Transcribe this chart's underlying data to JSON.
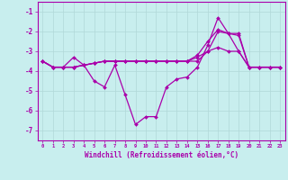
{
  "xlabel": "Windchill (Refroidissement éolien,°C)",
  "background_color": "#c8eeee",
  "grid_color": "#b0d8d8",
  "line_color": "#aa00aa",
  "xlim": [
    -0.5,
    23.5
  ],
  "ylim": [
    -7.5,
    -0.5
  ],
  "yticks": [
    -7,
    -6,
    -5,
    -4,
    -3,
    -2,
    -1
  ],
  "xticks": [
    0,
    1,
    2,
    3,
    4,
    5,
    6,
    7,
    8,
    9,
    10,
    11,
    12,
    13,
    14,
    15,
    16,
    17,
    18,
    19,
    20,
    21,
    22,
    23
  ],
  "series": [
    [
      [
        0,
        -3.5
      ],
      [
        1,
        -3.8
      ],
      [
        2,
        -3.8
      ],
      [
        3,
        -3.3
      ],
      [
        4,
        -3.7
      ],
      [
        5,
        -4.5
      ],
      [
        6,
        -4.8
      ],
      [
        7,
        -3.7
      ],
      [
        8,
        -5.2
      ],
      [
        9,
        -6.7
      ],
      [
        10,
        -6.3
      ],
      [
        11,
        -6.3
      ],
      [
        12,
        -4.8
      ],
      [
        13,
        -4.4
      ],
      [
        14,
        -4.3
      ],
      [
        15,
        -3.8
      ],
      [
        16,
        -2.7
      ],
      [
        17,
        -1.3
      ],
      [
        18,
        -2.1
      ],
      [
        19,
        -2.1
      ],
      [
        20,
        -3.8
      ],
      [
        21,
        -3.8
      ],
      [
        22,
        -3.8
      ],
      [
        23,
        -3.8
      ]
    ],
    [
      [
        0,
        -3.5
      ],
      [
        1,
        -3.8
      ],
      [
        2,
        -3.8
      ],
      [
        3,
        -3.8
      ],
      [
        4,
        -3.7
      ],
      [
        5,
        -3.6
      ],
      [
        6,
        -3.5
      ],
      [
        7,
        -3.5
      ],
      [
        8,
        -3.5
      ],
      [
        9,
        -3.5
      ],
      [
        10,
        -3.5
      ],
      [
        11,
        -3.5
      ],
      [
        12,
        -3.5
      ],
      [
        13,
        -3.5
      ],
      [
        14,
        -3.5
      ],
      [
        15,
        -3.3
      ],
      [
        16,
        -3.0
      ],
      [
        17,
        -2.8
      ],
      [
        18,
        -3.0
      ],
      [
        19,
        -3.0
      ],
      [
        20,
        -3.8
      ],
      [
        21,
        -3.8
      ],
      [
        22,
        -3.8
      ],
      [
        23,
        -3.8
      ]
    ],
    [
      [
        0,
        -3.5
      ],
      [
        1,
        -3.8
      ],
      [
        2,
        -3.8
      ],
      [
        3,
        -3.8
      ],
      [
        4,
        -3.7
      ],
      [
        5,
        -3.6
      ],
      [
        6,
        -3.5
      ],
      [
        7,
        -3.5
      ],
      [
        8,
        -3.5
      ],
      [
        9,
        -3.5
      ],
      [
        10,
        -3.5
      ],
      [
        11,
        -3.5
      ],
      [
        12,
        -3.5
      ],
      [
        13,
        -3.5
      ],
      [
        14,
        -3.5
      ],
      [
        15,
        -3.2
      ],
      [
        16,
        -2.5
      ],
      [
        17,
        -1.9
      ],
      [
        18,
        -2.1
      ],
      [
        19,
        -2.2
      ],
      [
        20,
        -3.8
      ],
      [
        21,
        -3.8
      ],
      [
        22,
        -3.8
      ],
      [
        23,
        -3.8
      ]
    ],
    [
      [
        0,
        -3.5
      ],
      [
        1,
        -3.8
      ],
      [
        2,
        -3.8
      ],
      [
        3,
        -3.8
      ],
      [
        4,
        -3.7
      ],
      [
        5,
        -3.6
      ],
      [
        6,
        -3.5
      ],
      [
        7,
        -3.5
      ],
      [
        8,
        -3.5
      ],
      [
        9,
        -3.5
      ],
      [
        10,
        -3.5
      ],
      [
        11,
        -3.5
      ],
      [
        12,
        -3.5
      ],
      [
        13,
        -3.5
      ],
      [
        14,
        -3.5
      ],
      [
        15,
        -3.5
      ],
      [
        16,
        -3.0
      ],
      [
        17,
        -2.0
      ],
      [
        18,
        -2.1
      ],
      [
        19,
        -3.0
      ],
      [
        20,
        -3.8
      ],
      [
        21,
        -3.8
      ],
      [
        22,
        -3.8
      ],
      [
        23,
        -3.8
      ]
    ]
  ]
}
